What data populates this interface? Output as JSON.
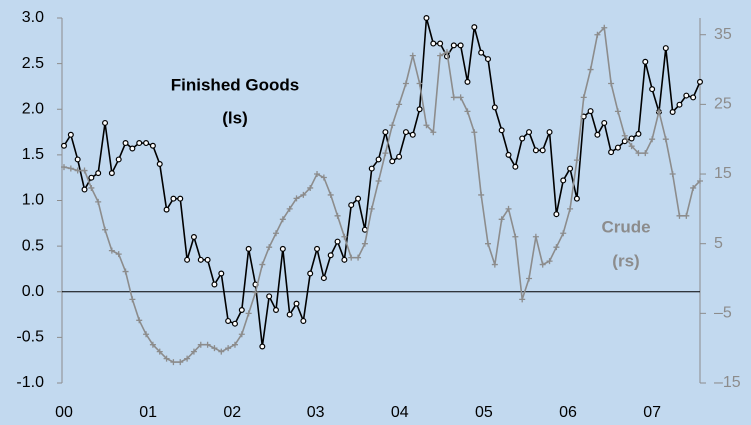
{
  "chart_data": {
    "type": "line",
    "series": [
      {
        "name": "Finished Goods",
        "note": "(ls)",
        "color": "#000000",
        "marker": "circle",
        "values": [
          1.6,
          1.72,
          1.45,
          1.12,
          1.25,
          1.3,
          1.85,
          1.3,
          1.45,
          1.63,
          1.57,
          1.63,
          1.63,
          1.6,
          1.4,
          0.9,
          1.02,
          1.02,
          0.35,
          0.6,
          0.35,
          0.35,
          0.08,
          0.2,
          -0.32,
          -0.35,
          -0.2,
          0.47,
          0.08,
          -0.6,
          -0.05,
          -0.2,
          0.47,
          -0.25,
          -0.13,
          -0.32,
          0.2,
          0.47,
          0.15,
          0.4,
          0.55,
          0.35,
          0.95,
          1.02,
          0.68,
          1.35,
          1.45,
          1.75,
          1.43,
          1.48,
          1.75,
          1.72,
          2.0,
          3.0,
          2.72,
          2.72,
          2.58,
          2.7,
          2.7,
          2.3,
          2.9,
          2.62,
          2.55,
          2.02,
          1.77,
          1.5,
          1.37,
          1.68,
          1.75,
          1.55,
          1.55,
          1.75,
          0.85,
          1.22,
          1.35,
          1.02,
          1.92,
          1.98,
          1.72,
          1.85,
          1.53,
          1.58,
          1.65,
          1.68,
          1.73,
          2.52,
          2.22,
          1.97,
          2.67,
          1.97,
          2.05,
          2.15,
          2.13,
          2.3
        ]
      },
      {
        "name": "Crude",
        "note": "(rs)",
        "color": "#8c8c8c",
        "marker": "plus",
        "axis": "y2",
        "values": [
          16,
          15.8,
          15.5,
          15.5,
          13,
          11,
          7,
          4,
          3.5,
          1,
          -3,
          -6,
          -8,
          -9.5,
          -10.5,
          -11.5,
          -12,
          -12,
          -11.5,
          -10.5,
          -9.5,
          -9.5,
          -10,
          -10.5,
          -10,
          -9.5,
          -8,
          -5,
          -2,
          2,
          4.5,
          6.5,
          8.5,
          10,
          11.5,
          12,
          13,
          15,
          14.5,
          12,
          9,
          6,
          3,
          3,
          5,
          10,
          14,
          18,
          22,
          25,
          28,
          32,
          28,
          22,
          21,
          32,
          32.5,
          26,
          26,
          24,
          21,
          12,
          5,
          2,
          8.5,
          10,
          6,
          -3,
          0,
          6,
          2,
          2.5,
          4.5,
          6.5,
          10,
          17,
          26,
          30,
          35,
          36,
          28,
          24,
          20.5,
          19,
          18,
          18,
          20,
          24,
          20,
          15,
          9,
          9,
          13,
          14
        ]
      }
    ],
    "xlim": [
      0,
      93
    ],
    "xticks": [
      {
        "value": 0,
        "label": "00"
      },
      {
        "value": 12.3,
        "label": "01"
      },
      {
        "value": 24.6,
        "label": "02"
      },
      {
        "value": 36.8,
        "label": "03"
      },
      {
        "value": 49.1,
        "label": "04"
      },
      {
        "value": 61.4,
        "label": "05"
      },
      {
        "value": 73.7,
        "label": "06"
      },
      {
        "value": 86,
        "label": "07"
      }
    ],
    "ylim": [
      -1.0,
      3.0
    ],
    "yticks": [
      {
        "value": -1.0,
        "label": "-1.0"
      },
      {
        "value": -0.5,
        "label": "-0.5"
      },
      {
        "value": 0,
        "label": "0.0"
      },
      {
        "value": 0.5,
        "label": "0.5"
      },
      {
        "value": 1.0,
        "label": "1.0"
      },
      {
        "value": 1.5,
        "label": "1.5"
      },
      {
        "value": 2.0,
        "label": "2.0"
      },
      {
        "value": 2.5,
        "label": "2.5"
      },
      {
        "value": 3.0,
        "label": "3.0"
      }
    ],
    "y2lim": [
      -15,
      37.4
    ],
    "y2ticks": [
      {
        "value": -15,
        "label": "–15"
      },
      {
        "value": -5,
        "label": "–5"
      },
      5,
      15,
      25,
      35
    ]
  }
}
